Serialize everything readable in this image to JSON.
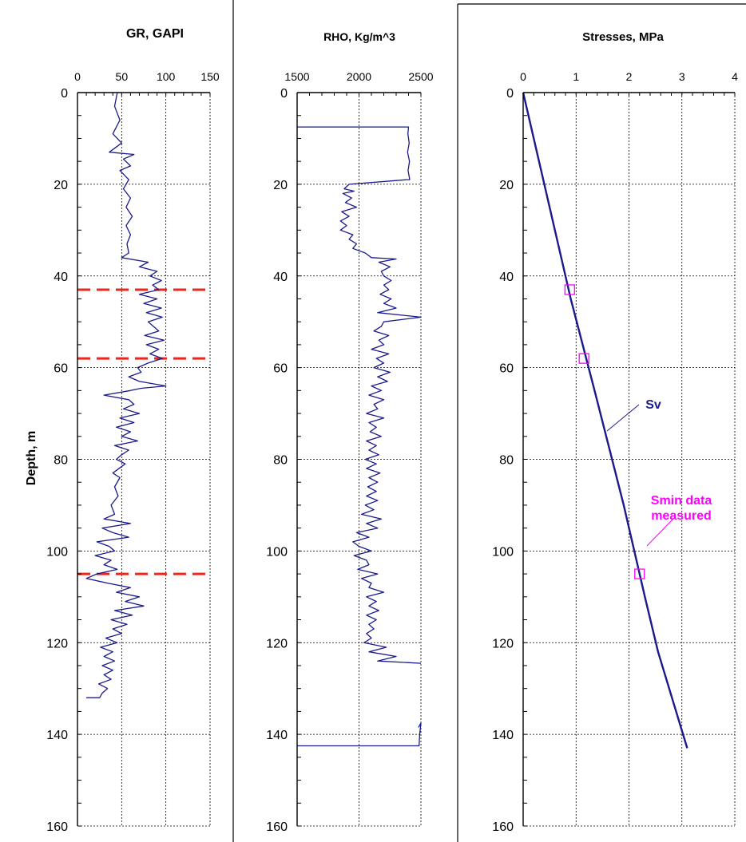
{
  "chart_data": [
    {
      "type": "line",
      "title": "GR, GAPI",
      "ylabel": "Depth, m",
      "xlim": [
        0,
        150
      ],
      "ylim": [
        0,
        160
      ],
      "y_inverted": true,
      "xticks": [
        0,
        50,
        100,
        150
      ],
      "yticks": [
        0,
        20,
        40,
        60,
        80,
        100,
        120,
        140,
        160
      ],
      "grid": true,
      "line_color": "#1a1a8c",
      "series": [
        {
          "points": [
            [
              45,
              0
            ],
            [
              42,
              3
            ],
            [
              48,
              6
            ],
            [
              40,
              9
            ],
            [
              50,
              11
            ],
            [
              36,
              13
            ],
            [
              64,
              13.5
            ],
            [
              52,
              14.5
            ],
            [
              60,
              16
            ],
            [
              48,
              17
            ],
            [
              58,
              19
            ],
            [
              52,
              21
            ],
            [
              60,
              23
            ],
            [
              55,
              25
            ],
            [
              62,
              27
            ],
            [
              55,
              29
            ],
            [
              60,
              31
            ],
            [
              56,
              33
            ],
            [
              58,
              35
            ],
            [
              50,
              36
            ],
            [
              80,
              37
            ],
            [
              70,
              38
            ],
            [
              90,
              39
            ],
            [
              82,
              40
            ],
            [
              95,
              41
            ],
            [
              85,
              42
            ],
            [
              92,
              43
            ],
            [
              70,
              44
            ],
            [
              90,
              45
            ],
            [
              75,
              46
            ],
            [
              95,
              47
            ],
            [
              78,
              48
            ],
            [
              96,
              49
            ],
            [
              80,
              50
            ],
            [
              92,
              52
            ],
            [
              76,
              53
            ],
            [
              98,
              54
            ],
            [
              78,
              55
            ],
            [
              92,
              56
            ],
            [
              82,
              57
            ],
            [
              96,
              58
            ],
            [
              80,
              59
            ],
            [
              68,
              60
            ],
            [
              72,
              61
            ],
            [
              58,
              62
            ],
            [
              70,
              63
            ],
            [
              100,
              64
            ],
            [
              72,
              64.5
            ],
            [
              60,
              65
            ],
            [
              30,
              66
            ],
            [
              58,
              67
            ],
            [
              64,
              68
            ],
            [
              52,
              69
            ],
            [
              70,
              70
            ],
            [
              48,
              71
            ],
            [
              64,
              72
            ],
            [
              44,
              73
            ],
            [
              60,
              74
            ],
            [
              50,
              75
            ],
            [
              68,
              76
            ],
            [
              42,
              77
            ],
            [
              58,
              78
            ],
            [
              50,
              79
            ],
            [
              44,
              80
            ],
            [
              54,
              81
            ],
            [
              40,
              83
            ],
            [
              48,
              84
            ],
            [
              42,
              86
            ],
            [
              46,
              88
            ],
            [
              38,
              90
            ],
            [
              42,
              92
            ],
            [
              30,
              93
            ],
            [
              60,
              94
            ],
            [
              28,
              95
            ],
            [
              40,
              96
            ],
            [
              58,
              97
            ],
            [
              22,
              98
            ],
            [
              36,
              99
            ],
            [
              42,
              100
            ],
            [
              20,
              101
            ],
            [
              38,
              102
            ],
            [
              30,
              103
            ],
            [
              45,
              104
            ],
            [
              22,
              105
            ],
            [
              10,
              106
            ],
            [
              34,
              107
            ],
            [
              60,
              108
            ],
            [
              44,
              109
            ],
            [
              70,
              110
            ],
            [
              54,
              111
            ],
            [
              75,
              112
            ],
            [
              42,
              113
            ],
            [
              62,
              114
            ],
            [
              38,
              115
            ],
            [
              56,
              116
            ],
            [
              40,
              117
            ],
            [
              50,
              118
            ],
            [
              32,
              119
            ],
            [
              45,
              120
            ],
            [
              26,
              121
            ],
            [
              40,
              122
            ],
            [
              30,
              123
            ],
            [
              42,
              124
            ],
            [
              28,
              125
            ],
            [
              40,
              126
            ],
            [
              30,
              127
            ],
            [
              38,
              128
            ],
            [
              24,
              129
            ],
            [
              34,
              130
            ],
            [
              28,
              131
            ],
            [
              25,
              132
            ],
            [
              10,
              132
            ]
          ]
        }
      ],
      "reference_lines": [
        {
          "depth": 43,
          "color": "#e8281e",
          "style": "dashed"
        },
        {
          "depth": 58,
          "color": "#e8281e",
          "style": "dashed"
        },
        {
          "depth": 105,
          "color": "#e8281e",
          "style": "dashed"
        }
      ]
    },
    {
      "type": "line",
      "title": "RHO, Kg/m^3",
      "xlim": [
        1500,
        2500
      ],
      "ylim": [
        0,
        160
      ],
      "y_inverted": true,
      "xticks": [
        1500,
        2000,
        2500
      ],
      "yticks": [
        0,
        20,
        40,
        60,
        80,
        100,
        120,
        140,
        160
      ],
      "grid": true,
      "line_color": "#1a1a8c",
      "series": [
        {
          "points": [
            [
              1500,
              7.5
            ],
            [
              2400,
              7.5
            ],
            [
              2395,
              9
            ],
            [
              2405,
              11
            ],
            [
              2392,
              13
            ],
            [
              2408,
              15
            ],
            [
              2396,
              17
            ],
            [
              2410,
              19
            ],
            [
              2390,
              19
            ],
            [
              1920,
              20
            ],
            [
              1880,
              21
            ],
            [
              1960,
              21.5
            ],
            [
              1870,
              22
            ],
            [
              1940,
              23
            ],
            [
              1890,
              24
            ],
            [
              1980,
              25
            ],
            [
              1860,
              26
            ],
            [
              1920,
              27
            ],
            [
              1850,
              28
            ],
            [
              1900,
              29
            ],
            [
              1850,
              30
            ],
            [
              1950,
              31
            ],
            [
              1920,
              32
            ],
            [
              1980,
              33
            ],
            [
              1950,
              34
            ],
            [
              2050,
              35
            ],
            [
              2100,
              36
            ],
            [
              2300,
              36.3
            ],
            [
              2160,
              37
            ],
            [
              2250,
              38
            ],
            [
              2180,
              39
            ],
            [
              2200,
              40
            ],
            [
              2260,
              41
            ],
            [
              2200,
              42
            ],
            [
              2240,
              43
            ],
            [
              2170,
              44
            ],
            [
              2260,
              45
            ],
            [
              2200,
              46
            ],
            [
              2300,
              47
            ],
            [
              2150,
              48
            ],
            [
              2500,
              49
            ],
            [
              2200,
              50
            ],
            [
              2180,
              51
            ],
            [
              2120,
              52
            ],
            [
              2240,
              53
            ],
            [
              2160,
              54
            ],
            [
              2200,
              55
            ],
            [
              2100,
              56
            ],
            [
              2240,
              57
            ],
            [
              2140,
              58
            ],
            [
              2200,
              59
            ],
            [
              2120,
              60
            ],
            [
              2250,
              61
            ],
            [
              2150,
              62
            ],
            [
              2230,
              63
            ],
            [
              2100,
              64
            ],
            [
              2180,
              65
            ],
            [
              2080,
              66
            ],
            [
              2200,
              67
            ],
            [
              2120,
              68
            ],
            [
              2150,
              69
            ],
            [
              2060,
              70
            ],
            [
              2200,
              71
            ],
            [
              2080,
              72
            ],
            [
              2140,
              73
            ],
            [
              2090,
              74
            ],
            [
              2180,
              75
            ],
            [
              2060,
              76
            ],
            [
              2140,
              77
            ],
            [
              2080,
              78
            ],
            [
              2160,
              79
            ],
            [
              2050,
              80
            ],
            [
              2140,
              81
            ],
            [
              2060,
              82
            ],
            [
              2170,
              83
            ],
            [
              2080,
              84
            ],
            [
              2150,
              85
            ],
            [
              2070,
              86
            ],
            [
              2140,
              87
            ],
            [
              2060,
              88
            ],
            [
              2150,
              89
            ],
            [
              2050,
              90
            ],
            [
              2120,
              91
            ],
            [
              2020,
              92
            ],
            [
              2180,
              93
            ],
            [
              2060,
              94
            ],
            [
              2150,
              95
            ],
            [
              1980,
              96
            ],
            [
              2080,
              97
            ],
            [
              1950,
              98
            ],
            [
              2000,
              99
            ],
            [
              2100,
              100
            ],
            [
              1960,
              101
            ],
            [
              2060,
              102
            ],
            [
              2080,
              103
            ],
            [
              1990,
              104
            ],
            [
              2150,
              105
            ],
            [
              2020,
              106
            ],
            [
              2100,
              107
            ],
            [
              2080,
              108
            ],
            [
              2200,
              109
            ],
            [
              2060,
              110
            ],
            [
              2140,
              111
            ],
            [
              2080,
              112
            ],
            [
              2160,
              113
            ],
            [
              2060,
              114
            ],
            [
              2140,
              115
            ],
            [
              2080,
              116
            ],
            [
              2120,
              117
            ],
            [
              2060,
              118
            ],
            [
              2100,
              119
            ],
            [
              2040,
              120
            ],
            [
              2220,
              121
            ],
            [
              2080,
              122
            ],
            [
              2300,
              123
            ],
            [
              2150,
              124
            ],
            [
              2500,
              124.5
            ]
          ]
        },
        {
          "points": [
            [
              2480,
              138.5
            ],
            [
              2500,
              137.5
            ],
            [
              2490,
              140
            ],
            [
              2485,
              142.5
            ],
            [
              1500,
              142.5
            ]
          ]
        }
      ]
    },
    {
      "type": "line",
      "title": "Stresses, MPa",
      "xlim": [
        0,
        4
      ],
      "ylim": [
        0,
        160
      ],
      "y_inverted": true,
      "xticks": [
        0,
        1,
        2,
        3,
        4
      ],
      "yticks": [
        0,
        20,
        40,
        60,
        80,
        100,
        120,
        140,
        160
      ],
      "grid": true,
      "line_color": "#1a1a8c",
      "series": [
        {
          "name": "Sv",
          "points": [
            [
              0,
              0
            ],
            [
              0.9,
              45
            ],
            [
              1.35,
              65
            ],
            [
              1.9,
              90
            ],
            [
              2.3,
              110
            ],
            [
              2.55,
              122
            ],
            [
              3.1,
              143
            ]
          ]
        }
      ],
      "markers": {
        "name": "Smin data measured",
        "color": "#ff00ff",
        "shape": "square",
        "points": [
          [
            0.88,
            43
          ],
          [
            1.15,
            58
          ],
          [
            2.2,
            105
          ]
        ]
      },
      "annotations": [
        {
          "text": "Sv",
          "color": "#1a1a8c"
        },
        {
          "text": "Smin data",
          "color": "#ff00ff"
        },
        {
          "text": "measured",
          "color": "#ff00ff"
        }
      ]
    }
  ]
}
